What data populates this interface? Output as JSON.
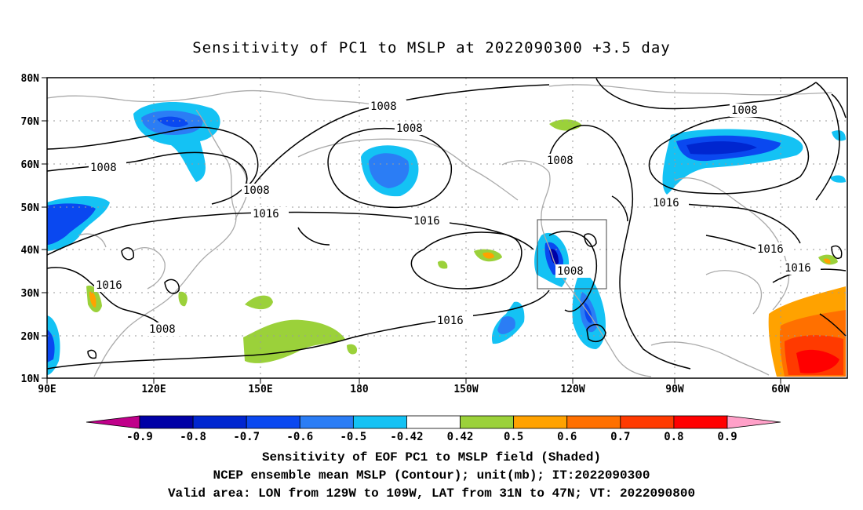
{
  "title": "Sensitivity of PC1 to MSLP at 2022090300 +3.5 day",
  "map": {
    "lat_labels": [
      "80N",
      "70N",
      "60N",
      "50N",
      "40N",
      "30N",
      "20N",
      "10N"
    ],
    "lon_labels": [
      "90E",
      "120E",
      "150E",
      "180",
      "150W",
      "120W",
      "90W",
      "60W"
    ],
    "contour_labels": [
      {
        "text": "1008",
        "id": "c1008a"
      },
      {
        "text": "1008",
        "id": "c1008b"
      },
      {
        "text": "1008",
        "id": "c1008c"
      },
      {
        "text": "1008",
        "id": "c1008d"
      },
      {
        "text": "1008",
        "id": "c1008e"
      },
      {
        "text": "1008",
        "id": "c1008f"
      },
      {
        "text": "1008",
        "id": "c1008g"
      },
      {
        "text": "1016",
        "id": "c1016a"
      },
      {
        "text": "1016",
        "id": "c1016b"
      },
      {
        "text": "1016",
        "id": "c1016c"
      },
      {
        "text": "1016",
        "id": "c1016d"
      },
      {
        "text": "1016",
        "id": "c1016e"
      },
      {
        "text": "1016",
        "id": "c1016f"
      },
      {
        "text": "1016",
        "id": "c1016g"
      },
      {
        "text": "1008",
        "id": "c1008h"
      }
    ],
    "valid_box": {
      "lon_from": "129W",
      "lon_to": "109W",
      "lat_from": "31N",
      "lat_to": "47N"
    }
  },
  "colorbar": {
    "labels": [
      "-0.9",
      "-0.8",
      "-0.7",
      "-0.6",
      "-0.5",
      "-0.42",
      "0.42",
      "0.5",
      "0.6",
      "0.7",
      "0.8",
      "0.9"
    ],
    "colors": [
      "#c0008a",
      "#0000a6",
      "#0026d0",
      "#0a48f0",
      "#2b7df5",
      "#14c2f4",
      "#ffffff",
      "#9bd13a",
      "#ffa200",
      "#ff7000",
      "#ff3a00",
      "#ff0000",
      "#ffa0c8"
    ]
  },
  "captions": {
    "line1": "Sensitivity of EOF PC1 to MSLP field (Shaded)",
    "line2": "NCEP ensemble mean MSLP (Contour); unit(mb); IT:2022090300",
    "line3": "Valid area: LON from 129W to 109W, LAT from 31N to 47N; VT: 2022090800"
  }
}
